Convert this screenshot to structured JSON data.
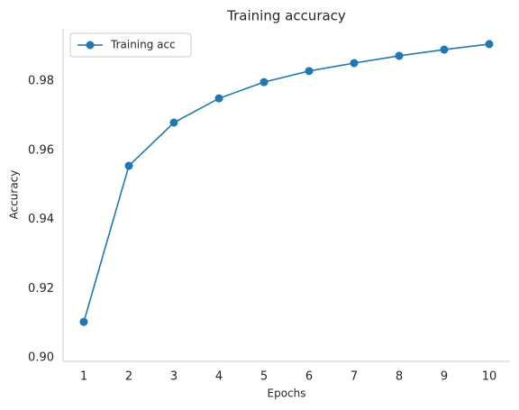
{
  "chart_data": {
    "type": "line",
    "title": "Training  accuracy",
    "xlabel": "Epochs",
    "ylabel": "Accuracy",
    "x": [
      1,
      2,
      3,
      4,
      5,
      6,
      7,
      8,
      9,
      10
    ],
    "series": [
      {
        "name": "Training acc",
        "color": "#1f77b4",
        "values": [
          0.9104,
          0.9555,
          0.968,
          0.975,
          0.9797,
          0.9829,
          0.9852,
          0.9873,
          0.9891,
          0.9907
        ]
      }
    ],
    "xlim": [
      0.54,
      10.46
    ],
    "xticks": [
      1,
      2,
      3,
      4,
      5,
      6,
      7,
      8,
      9,
      10
    ],
    "ylim": [
      0.899,
      0.9951
    ],
    "yticks": [
      {
        "value": 0.9,
        "label": "0.90"
      },
      0.92,
      0.94,
      0.96,
      0.98
    ],
    "grid": false,
    "legend": "upper left"
  }
}
